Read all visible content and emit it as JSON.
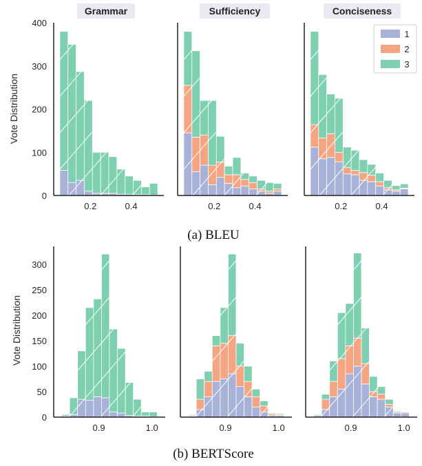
{
  "chart_data": [
    {
      "type": "bar",
      "subtype": "stacked-histogram",
      "caption": "(a) BLEU",
      "ylabel": "Vote Distribution",
      "ylim": [
        0,
        400
      ],
      "yticks": [
        0,
        100,
        200,
        300,
        400
      ],
      "xlim": [
        0.02,
        0.56
      ],
      "xticks": [
        0.2,
        0.4
      ],
      "xtick_labels": [
        "0.2",
        "0.4"
      ],
      "bin_edges": [
        0.05,
        0.09,
        0.13,
        0.17,
        0.21,
        0.25,
        0.29,
        0.33,
        0.37,
        0.41,
        0.45,
        0.49,
        0.53
      ],
      "series_names": [
        "1",
        "2",
        "3"
      ],
      "colors": [
        "#a8b1d8",
        "#f5a582",
        "#7ed0b0"
      ],
      "legend": {
        "position": "top-right",
        "labels": [
          "1",
          "2",
          "3"
        ]
      },
      "panels": [
        {
          "title": "Grammar",
          "series": [
            {
              "name": "1",
              "values": [
                58,
                30,
                35,
                10,
                5,
                5,
                5,
                3,
                3,
                2,
                2,
                1
              ]
            },
            {
              "name": "2",
              "values": [
                0,
                0,
                0,
                0,
                0,
                0,
                0,
                0,
                0,
                0,
                0,
                0
              ]
            },
            {
              "name": "3",
              "values": [
                322,
                320,
                252,
                210,
                95,
                95,
                85,
                58,
                42,
                33,
                18,
                27
              ]
            }
          ]
        },
        {
          "title": "Sufficiency",
          "series": [
            {
              "name": "1",
              "values": [
                145,
                55,
                70,
                25,
                42,
                28,
                18,
                22,
                15,
                10,
                5,
                10
              ]
            },
            {
              "name": "2",
              "values": [
                110,
                80,
                70,
                45,
                35,
                20,
                30,
                15,
                15,
                5,
                5,
                5
              ]
            },
            {
              "name": "3",
              "values": [
                125,
                200,
                80,
                150,
                60,
                20,
                40,
                15,
                15,
                20,
                20,
                13
              ]
            }
          ]
        },
        {
          "title": "Conciseness",
          "series": [
            {
              "name": "1",
              "values": [
                112,
                85,
                88,
                78,
                50,
                48,
                35,
                32,
                22,
                13,
                10,
                15
              ]
            },
            {
              "name": "2",
              "values": [
                52,
                48,
                55,
                22,
                15,
                10,
                18,
                15,
                10,
                5,
                3,
                2
              ]
            },
            {
              "name": "3",
              "values": [
                216,
                147,
                92,
                125,
                47,
                47,
                30,
                25,
                20,
                17,
                10,
                10
              ]
            }
          ]
        }
      ]
    },
    {
      "type": "bar",
      "subtype": "stacked-histogram",
      "caption": "(b) BERTScore",
      "ylabel": "Vote Distribution",
      "ylim": [
        0,
        335
      ],
      "yticks": [
        0,
        50,
        100,
        150,
        200,
        250,
        300
      ],
      "xlim": [
        0.815,
        1.025
      ],
      "xticks": [
        0.9,
        1.0
      ],
      "xtick_labels": [
        "0.9",
        "1.0"
      ],
      "bin_edges": [
        0.83,
        0.845,
        0.86,
        0.875,
        0.89,
        0.905,
        0.92,
        0.935,
        0.95,
        0.965,
        0.98,
        0.995,
        1.01
      ],
      "series_names": [
        "1",
        "2",
        "3"
      ],
      "colors": [
        "#a8b1d8",
        "#f5a582",
        "#7ed0b0"
      ],
      "panels": [
        {
          "title": "",
          "series": [
            {
              "name": "1",
              "values": [
                2,
                5,
                35,
                33,
                40,
                38,
                10,
                8,
                3,
                2,
                2,
                1
              ]
            },
            {
              "name": "2",
              "values": [
                0,
                0,
                0,
                0,
                0,
                0,
                0,
                0,
                0,
                0,
                0,
                0
              ]
            },
            {
              "name": "3",
              "values": [
                3,
                33,
                95,
                182,
                192,
                282,
                163,
                127,
                65,
                33,
                8,
                9
              ]
            }
          ]
        },
        {
          "title": "",
          "series": [
            {
              "name": "1",
              "values": [
                2,
                15,
                40,
                70,
                75,
                85,
                60,
                40,
                20,
                10,
                3,
                3
              ]
            },
            {
              "name": "2",
              "values": [
                1,
                20,
                30,
                70,
                70,
                75,
                40,
                30,
                20,
                12,
                3,
                2
              ]
            },
            {
              "name": "3",
              "values": [
                2,
                40,
                20,
                20,
                70,
                160,
                45,
                30,
                15,
                10,
                2,
                2
              ]
            }
          ]
        },
        {
          "title": "",
          "series": [
            {
              "name": "1",
              "values": [
                3,
                15,
                40,
                55,
                85,
                100,
                65,
                40,
                35,
                20,
                8,
                8
              ]
            },
            {
              "name": "2",
              "values": [
                0,
                20,
                30,
                60,
                55,
                55,
                40,
                10,
                10,
                5,
                2,
                2
              ]
            },
            {
              "name": "3",
              "values": [
                2,
                10,
                40,
                90,
                83,
                167,
                70,
                30,
                15,
                10,
                2,
                1
              ]
            }
          ]
        }
      ]
    }
  ]
}
